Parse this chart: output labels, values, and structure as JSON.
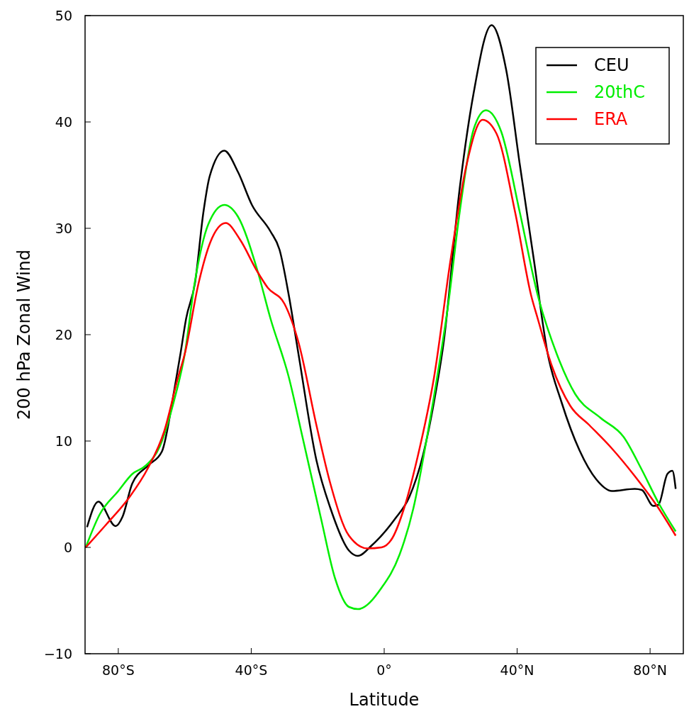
{
  "chart_data": {
    "type": "line",
    "xlabel": "Latitude",
    "ylabel": "200 hPa Zonal Wind",
    "xlim": [
      -90,
      90
    ],
    "ylim": [
      -10,
      50
    ],
    "xticks": [
      {
        "value": -80,
        "label": "80°S"
      },
      {
        "value": -40,
        "label": "40°S"
      },
      {
        "value": 0,
        "label": "0°"
      },
      {
        "value": 40,
        "label": "40°N"
      },
      {
        "value": 80,
        "label": "80°N"
      }
    ],
    "yticks": [
      -10,
      0,
      10,
      20,
      30,
      40,
      50
    ],
    "grid": false,
    "legend": "top right",
    "marker": "none",
    "line_style": "solid",
    "series": [
      {
        "name": "CEU",
        "color": "#000000",
        "x": [
          -89.4,
          -86,
          -80.8,
          -78.7,
          -75.8,
          -71,
          -66.9,
          -63.1,
          -61.3,
          -59.6,
          -56.9,
          -54.4,
          -52.5,
          -48.1,
          -44,
          -39.8,
          -34.2,
          -31.5,
          -28.7,
          -25.8,
          -20.4,
          -16.2,
          -10.6,
          -7.9,
          -3.7,
          3.3,
          7.5,
          11.7,
          15,
          17.9,
          22.7,
          26.9,
          32.3,
          36.7,
          40.8,
          45,
          49.2,
          53.3,
          58.8,
          63.8,
          68.5,
          75.4,
          77.5,
          81,
          82.5,
          85.2,
          86.7,
          87.7
        ],
        "values": [
          1.9,
          4.3,
          2.0,
          2.9,
          6,
          7.7,
          9,
          14.9,
          18.2,
          21.5,
          24.9,
          31.5,
          34.9,
          37.3,
          35.3,
          32.2,
          29.7,
          28,
          23.7,
          18.2,
          8.2,
          3.7,
          -0.3,
          -0.8,
          0.2,
          2.7,
          4.7,
          8.7,
          13.7,
          19.3,
          33.7,
          42.7,
          49.1,
          44.9,
          36,
          27.1,
          18.2,
          13.7,
          9.1,
          6.4,
          5.3,
          5.5,
          5.4,
          3.9,
          4.0,
          6.9,
          7.2,
          5.5
        ]
      },
      {
        "name": "20thC",
        "color": "#00ee00",
        "x": [
          -89.8,
          -85.6,
          -80,
          -75.8,
          -71.7,
          -67.5,
          -63.3,
          -60,
          -57,
          -52.9,
          -48.1,
          -44,
          -38.3,
          -34.2,
          -28.7,
          -24.6,
          -19,
          -14.8,
          -10.6,
          -7.9,
          -0.8,
          4.6,
          8.8,
          12.9,
          16.5,
          19.2,
          22.7,
          26.9,
          30.6,
          35.2,
          40.8,
          46.2,
          51.9,
          57.5,
          65,
          72,
          77.5,
          82.5,
          87.7
        ],
        "values": [
          0,
          3.1,
          5.3,
          6.9,
          7.7,
          9.5,
          13.7,
          18.2,
          24.9,
          30.4,
          32.2,
          31.1,
          26.2,
          21.5,
          16,
          10.4,
          2.7,
          -2.9,
          -5.6,
          -5.8,
          -3.8,
          -0.7,
          3.7,
          10.4,
          17.1,
          22.7,
          31.5,
          39.3,
          41.1,
          39.1,
          31.5,
          23.7,
          18.2,
          14.4,
          12.2,
          10.4,
          7.3,
          4.2,
          1.5
        ]
      },
      {
        "name": "ERA",
        "color": "#ff0000",
        "x": [
          -89.8,
          -83.5,
          -76.7,
          -71,
          -66.2,
          -62,
          -60,
          -55.8,
          -52.3,
          -47.7,
          -43.3,
          -38.3,
          -35,
          -30,
          -25.8,
          -20.4,
          -16.2,
          -10.6,
          -5,
          -0.8,
          2.5,
          6,
          10.2,
          15,
          20,
          24.8,
          29.6,
          33.8,
          39.4,
          44.2,
          46.2,
          50.4,
          56,
          61.7,
          68.5,
          75.4,
          82.5,
          87.7
        ],
        "values": [
          0,
          2.2,
          4.7,
          7.5,
          10.9,
          16,
          18.2,
          24.9,
          28.7,
          30.5,
          28.9,
          26,
          24.4,
          22.9,
          19.3,
          11.5,
          6,
          1.1,
          -0.1,
          0,
          0.9,
          3.7,
          8.7,
          16,
          27.1,
          36,
          40.2,
          38.9,
          31.5,
          23.7,
          21.5,
          17.1,
          13.3,
          11.5,
          9.3,
          6.7,
          3.7,
          1.1
        ]
      }
    ]
  }
}
